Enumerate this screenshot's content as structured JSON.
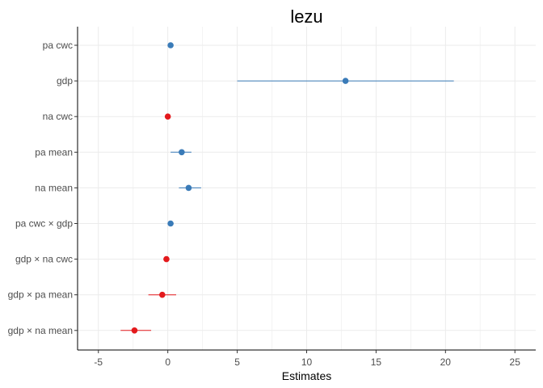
{
  "chart_data": {
    "type": "scatter",
    "subtype": "coefficient-plot",
    "title": "lezu",
    "xlabel": "Estimates",
    "ylabel": "",
    "xlim": [
      -6.5,
      26.5
    ],
    "x_ticks": [
      -5,
      0,
      5,
      10,
      15,
      20,
      25
    ],
    "grid": true,
    "legend": "none",
    "colors": {
      "positive": "#3a7bb8",
      "negative": "#e3191c"
    },
    "terms": [
      {
        "label": "pa cwc",
        "estimate": 0.2,
        "conf_low": 0.0,
        "conf_high": 0.4,
        "sign": "positive"
      },
      {
        "label": "gdp",
        "estimate": 12.8,
        "conf_low": 5.0,
        "conf_high": 20.6,
        "sign": "positive"
      },
      {
        "label": "na cwc",
        "estimate": 0.0,
        "conf_low": -0.15,
        "conf_high": 0.15,
        "sign": "negative"
      },
      {
        "label": "pa mean",
        "estimate": 1.0,
        "conf_low": 0.2,
        "conf_high": 1.7,
        "sign": "positive"
      },
      {
        "label": "na mean",
        "estimate": 1.5,
        "conf_low": 0.8,
        "conf_high": 2.4,
        "sign": "positive"
      },
      {
        "label": "pa cwc × gdp",
        "estimate": 0.2,
        "conf_low": 0.0,
        "conf_high": 0.4,
        "sign": "positive"
      },
      {
        "label": "gdp × na cwc",
        "estimate": -0.1,
        "conf_low": -0.3,
        "conf_high": 0.1,
        "sign": "negative"
      },
      {
        "label": "gdp × pa mean",
        "estimate": -0.4,
        "conf_low": -1.4,
        "conf_high": 0.6,
        "sign": "negative"
      },
      {
        "label": "gdp × na mean",
        "estimate": -2.4,
        "conf_low": -3.4,
        "conf_high": -1.2,
        "sign": "negative"
      }
    ]
  }
}
